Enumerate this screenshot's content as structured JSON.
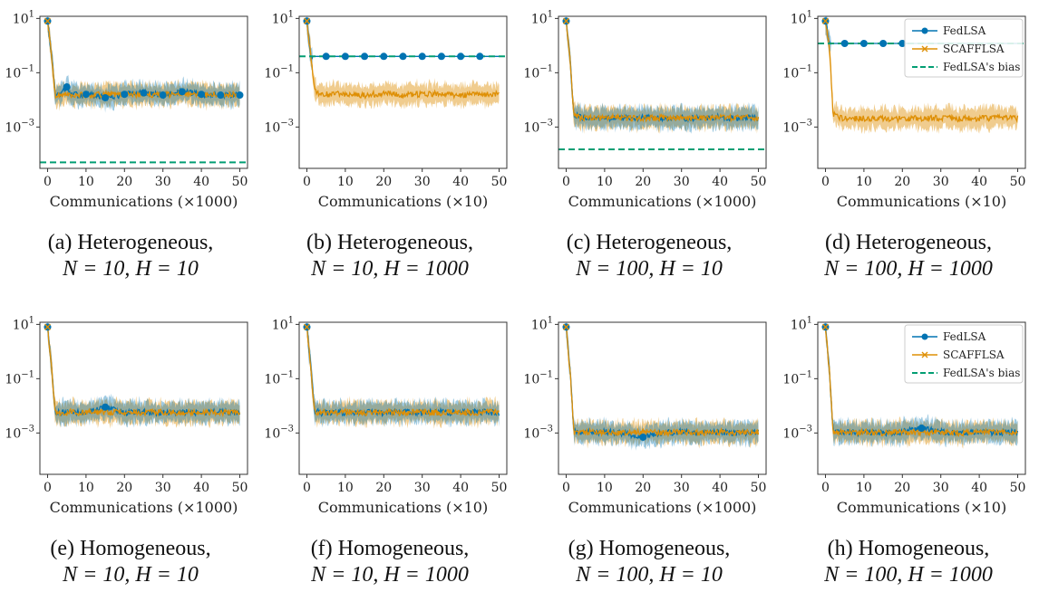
{
  "figure": {
    "colors": {
      "fedlsa": "#0173b2",
      "scafflsa": "#de8f05",
      "bias": "#029e73",
      "axis": "#333333"
    }
  },
  "chart_data": [
    {
      "id": "a",
      "type": "line",
      "caption_prefix": "(a) Heterogeneous,",
      "caption_math": "N = 10, H = 10",
      "xlabel": "Communications (×1000)",
      "x_ticks": [
        0,
        10,
        20,
        30,
        40,
        50
      ],
      "xlim": [
        -2,
        52
      ],
      "y_scale": "log",
      "ylim": [
        3e-05,
        12
      ],
      "y_ticks": [
        {
          "value": 10,
          "base": "10",
          "exp": "1"
        },
        {
          "value": 0.1,
          "base": "10",
          "exp": "−1"
        },
        {
          "value": 0.001,
          "base": "10",
          "exp": "−3"
        }
      ],
      "x": [
        0,
        1,
        2,
        3,
        4,
        5,
        6,
        8,
        10,
        15,
        20,
        25,
        30,
        35,
        40,
        45,
        50
      ],
      "series": [
        {
          "name": "FedLSA",
          "values": [
            8,
            0.5,
            0.015,
            0.014,
            0.02,
            0.03,
            0.016,
            0.015,
            0.016,
            0.012,
            0.016,
            0.018,
            0.015,
            0.02,
            0.016,
            0.015,
            0.015
          ],
          "marker_x": [
            0,
            5,
            10,
            15,
            20,
            25,
            30,
            35,
            40,
            45,
            50
          ]
        },
        {
          "name": "SCAFFLSA",
          "values": [
            8,
            0.5,
            0.014,
            0.015,
            0.015,
            0.016,
            0.015,
            0.016,
            0.015,
            0.016,
            0.015,
            0.016,
            0.015,
            0.016,
            0.015,
            0.016,
            0.015
          ]
        }
      ],
      "bias": 5e-05,
      "legend": null
    },
    {
      "id": "b",
      "type": "line",
      "caption_prefix": "(b) Heterogeneous,",
      "caption_math": "N = 10, H = 1000",
      "xlabel": "Communications (×10)",
      "x_ticks": [
        0,
        10,
        20,
        30,
        40,
        50
      ],
      "xlim": [
        -2,
        52
      ],
      "y_scale": "log",
      "ylim": [
        3e-05,
        12
      ],
      "y_ticks": [
        {
          "value": 10,
          "base": "10",
          "exp": "1"
        },
        {
          "value": 0.1,
          "base": "10",
          "exp": "−1"
        },
        {
          "value": 0.001,
          "base": "10",
          "exp": "−3"
        }
      ],
      "x": [
        0,
        1,
        2,
        3,
        4,
        5,
        6,
        8,
        10,
        15,
        20,
        25,
        30,
        35,
        40,
        45,
        50
      ],
      "series": [
        {
          "name": "FedLSA",
          "values": [
            8,
            0.4,
            0.4,
            0.4,
            0.4,
            0.4,
            0.4,
            0.4,
            0.4,
            0.4,
            0.4,
            0.4,
            0.4,
            0.4,
            0.4,
            0.4,
            0.4
          ],
          "marker_x": [
            0,
            5,
            10,
            15,
            20,
            25,
            30,
            35,
            40,
            45
          ]
        },
        {
          "name": "SCAFFLSA",
          "values": [
            8,
            0.4,
            0.022,
            0.018,
            0.017,
            0.016,
            0.015,
            0.017,
            0.016,
            0.015,
            0.017,
            0.015,
            0.016,
            0.017,
            0.015,
            0.016,
            0.016
          ]
        }
      ],
      "bias": 0.4,
      "legend": null
    },
    {
      "id": "c",
      "type": "line",
      "caption_prefix": "(c) Heterogeneous,",
      "caption_math": "N = 100, H = 10",
      "xlabel": "Communications (×1000)",
      "x_ticks": [
        0,
        10,
        20,
        30,
        40,
        50
      ],
      "xlim": [
        -2,
        52
      ],
      "y_scale": "log",
      "ylim": [
        3e-05,
        12
      ],
      "y_ticks": [
        {
          "value": 10,
          "base": "10",
          "exp": "1"
        },
        {
          "value": 0.1,
          "base": "10",
          "exp": "−1"
        },
        {
          "value": 0.001,
          "base": "10",
          "exp": "−3"
        }
      ],
      "x": [
        0,
        1,
        2,
        3,
        4,
        5,
        6,
        8,
        10,
        15,
        20,
        25,
        30,
        35,
        40,
        45,
        50
      ],
      "series": [
        {
          "name": "FedLSA",
          "values": [
            8,
            0.3,
            0.003,
            0.0025,
            0.0022,
            0.0022,
            0.0023,
            0.0021,
            0.0022,
            0.0021,
            0.0023,
            0.0022,
            0.0021,
            0.0022,
            0.0023,
            0.0021,
            0.0022
          ],
          "marker_x": [
            0
          ]
        },
        {
          "name": "SCAFFLSA",
          "values": [
            8,
            0.3,
            0.0028,
            0.0024,
            0.0021,
            0.0022,
            0.0022,
            0.0021,
            0.0022,
            0.0022,
            0.0021,
            0.0022,
            0.0022,
            0.0021,
            0.0022,
            0.0022,
            0.0021
          ]
        }
      ],
      "bias": 0.00015,
      "legend": null
    },
    {
      "id": "d",
      "type": "line",
      "caption_prefix": "(d) Heterogeneous,",
      "caption_math": "N = 100, H = 1000",
      "xlabel": "Communications (×10)",
      "x_ticks": [
        0,
        10,
        20,
        30,
        40,
        50
      ],
      "xlim": [
        -2,
        52
      ],
      "y_scale": "log",
      "ylim": [
        3e-05,
        12
      ],
      "y_ticks": [
        {
          "value": 10,
          "base": "10",
          "exp": "1"
        },
        {
          "value": 0.1,
          "base": "10",
          "exp": "−1"
        },
        {
          "value": 0.001,
          "base": "10",
          "exp": "−3"
        }
      ],
      "x": [
        0,
        1,
        2,
        3,
        4,
        5,
        6,
        8,
        10,
        15,
        20,
        25,
        30,
        35,
        40,
        45,
        50
      ],
      "series": [
        {
          "name": "FedLSA",
          "values": [
            8,
            1.2,
            1.2,
            1.2,
            1.2,
            1.2,
            1.2,
            1.2,
            1.2,
            1.2,
            1.2,
            1.2,
            1.2,
            1.2,
            1.2,
            1.2,
            1.2
          ],
          "marker_x": [
            0,
            5,
            10,
            15,
            20
          ]
        },
        {
          "name": "SCAFFLSA",
          "values": [
            8,
            1.0,
            0.003,
            0.0025,
            0.0022,
            0.0021,
            0.0021,
            0.002,
            0.0021,
            0.0021,
            0.002,
            0.0021,
            0.0021,
            0.002,
            0.0021,
            0.0022,
            0.0021
          ]
        }
      ],
      "bias": 1.2,
      "legend": {
        "placement": "top-right",
        "entries": [
          "FedLSA",
          "SCAFFLSA",
          "FedLSA's bias"
        ]
      }
    },
    {
      "id": "e",
      "type": "line",
      "caption_prefix": "(e) Homogeneous,",
      "caption_math": "N = 10, H = 10",
      "xlabel": "Communications (×1000)",
      "x_ticks": [
        0,
        10,
        20,
        30,
        40,
        50
      ],
      "xlim": [
        -2,
        52
      ],
      "y_scale": "log",
      "ylim": [
        3e-05,
        12
      ],
      "y_ticks": [
        {
          "value": 10,
          "base": "10",
          "exp": "1"
        },
        {
          "value": 0.1,
          "base": "10",
          "exp": "−1"
        },
        {
          "value": 0.001,
          "base": "10",
          "exp": "−3"
        }
      ],
      "x": [
        0,
        1,
        2,
        3,
        4,
        5,
        6,
        8,
        10,
        15,
        20,
        25,
        30,
        35,
        40,
        45,
        50
      ],
      "series": [
        {
          "name": "FedLSA",
          "values": [
            8,
            0.3,
            0.006,
            0.0055,
            0.0055,
            0.006,
            0.0055,
            0.006,
            0.0055,
            0.009,
            0.0055,
            0.006,
            0.0055,
            0.006,
            0.0055,
            0.006,
            0.0055
          ],
          "marker_x": [
            0,
            15
          ]
        },
        {
          "name": "SCAFFLSA",
          "values": [
            8,
            0.3,
            0.006,
            0.0055,
            0.006,
            0.0055,
            0.006,
            0.0055,
            0.006,
            0.0055,
            0.006,
            0.0055,
            0.006,
            0.0055,
            0.006,
            0.0055,
            0.006
          ]
        }
      ],
      "bias": null,
      "legend": null
    },
    {
      "id": "f",
      "type": "line",
      "caption_prefix": "(f) Homogeneous,",
      "caption_math": "N = 10, H = 1000",
      "xlabel": "Communications (×10)",
      "x_ticks": [
        0,
        10,
        20,
        30,
        40,
        50
      ],
      "xlim": [
        -2,
        52
      ],
      "y_scale": "log",
      "ylim": [
        3e-05,
        12
      ],
      "y_ticks": [
        {
          "value": 10,
          "base": "10",
          "exp": "1"
        },
        {
          "value": 0.1,
          "base": "10",
          "exp": "−1"
        },
        {
          "value": 0.001,
          "base": "10",
          "exp": "−3"
        }
      ],
      "x": [
        0,
        1,
        2,
        3,
        4,
        5,
        6,
        8,
        10,
        15,
        20,
        25,
        30,
        35,
        40,
        45,
        50
      ],
      "series": [
        {
          "name": "FedLSA",
          "values": [
            8,
            0.3,
            0.0065,
            0.006,
            0.0055,
            0.006,
            0.0055,
            0.006,
            0.0055,
            0.006,
            0.0055,
            0.006,
            0.0055,
            0.006,
            0.0055,
            0.006,
            0.0055
          ],
          "marker_x": [
            0
          ]
        },
        {
          "name": "SCAFFLSA",
          "values": [
            8,
            0.3,
            0.006,
            0.0055,
            0.006,
            0.0055,
            0.006,
            0.0055,
            0.006,
            0.0055,
            0.006,
            0.0055,
            0.006,
            0.0055,
            0.006,
            0.0055,
            0.006
          ]
        }
      ],
      "bias": null,
      "legend": null
    },
    {
      "id": "g",
      "type": "line",
      "caption_prefix": "(g) Homogeneous,",
      "caption_math": "N = 100, H = 10",
      "xlabel": "Communications (×1000)",
      "x_ticks": [
        0,
        10,
        20,
        30,
        40,
        50
      ],
      "xlim": [
        -2,
        52
      ],
      "y_scale": "log",
      "ylim": [
        3e-05,
        12
      ],
      "y_ticks": [
        {
          "value": 10,
          "base": "10",
          "exp": "1"
        },
        {
          "value": 0.1,
          "base": "10",
          "exp": "−1"
        },
        {
          "value": 0.001,
          "base": "10",
          "exp": "−3"
        }
      ],
      "x": [
        0,
        1,
        2,
        3,
        4,
        5,
        6,
        8,
        10,
        15,
        20,
        25,
        30,
        35,
        40,
        45,
        50
      ],
      "series": [
        {
          "name": "FedLSA",
          "values": [
            8,
            0.2,
            0.0012,
            0.001,
            0.0011,
            0.001,
            0.0011,
            0.001,
            0.0011,
            0.001,
            0.0007,
            0.001,
            0.0011,
            0.001,
            0.0011,
            0.001,
            0.0011
          ],
          "marker_x": [
            0,
            20
          ]
        },
        {
          "name": "SCAFFLSA",
          "values": [
            8,
            0.2,
            0.0011,
            0.001,
            0.0011,
            0.001,
            0.0011,
            0.001,
            0.0011,
            0.001,
            0.0011,
            0.001,
            0.0011,
            0.001,
            0.0011,
            0.001,
            0.0011
          ]
        }
      ],
      "bias": null,
      "legend": null
    },
    {
      "id": "h",
      "type": "line",
      "caption_prefix": "(h) Homogeneous,",
      "caption_math": "N = 100, H = 1000",
      "xlabel": "Communications (×10)",
      "x_ticks": [
        0,
        10,
        20,
        30,
        40,
        50
      ],
      "xlim": [
        -2,
        52
      ],
      "y_scale": "log",
      "ylim": [
        3e-05,
        12
      ],
      "y_ticks": [
        {
          "value": 10,
          "base": "10",
          "exp": "1"
        },
        {
          "value": 0.1,
          "base": "10",
          "exp": "−1"
        },
        {
          "value": 0.001,
          "base": "10",
          "exp": "−3"
        }
      ],
      "x": [
        0,
        1,
        2,
        3,
        4,
        5,
        6,
        8,
        10,
        15,
        20,
        25,
        30,
        35,
        40,
        45,
        50
      ],
      "series": [
        {
          "name": "FedLSA",
          "values": [
            8,
            0.2,
            0.0012,
            0.001,
            0.0011,
            0.001,
            0.0011,
            0.001,
            0.0011,
            0.001,
            0.0011,
            0.0015,
            0.0011,
            0.001,
            0.0011,
            0.001,
            0.0011
          ],
          "marker_x": [
            0,
            25
          ]
        },
        {
          "name": "SCAFFLSA",
          "values": [
            8,
            0.2,
            0.0011,
            0.001,
            0.0011,
            0.001,
            0.0011,
            0.001,
            0.0011,
            0.001,
            0.0011,
            0.001,
            0.0011,
            0.001,
            0.0011,
            0.001,
            0.0011
          ]
        }
      ],
      "bias": null,
      "legend": {
        "placement": "top-right",
        "entries": [
          "FedLSA",
          "SCAFFLSA",
          "FedLSA's bias"
        ]
      }
    }
  ]
}
